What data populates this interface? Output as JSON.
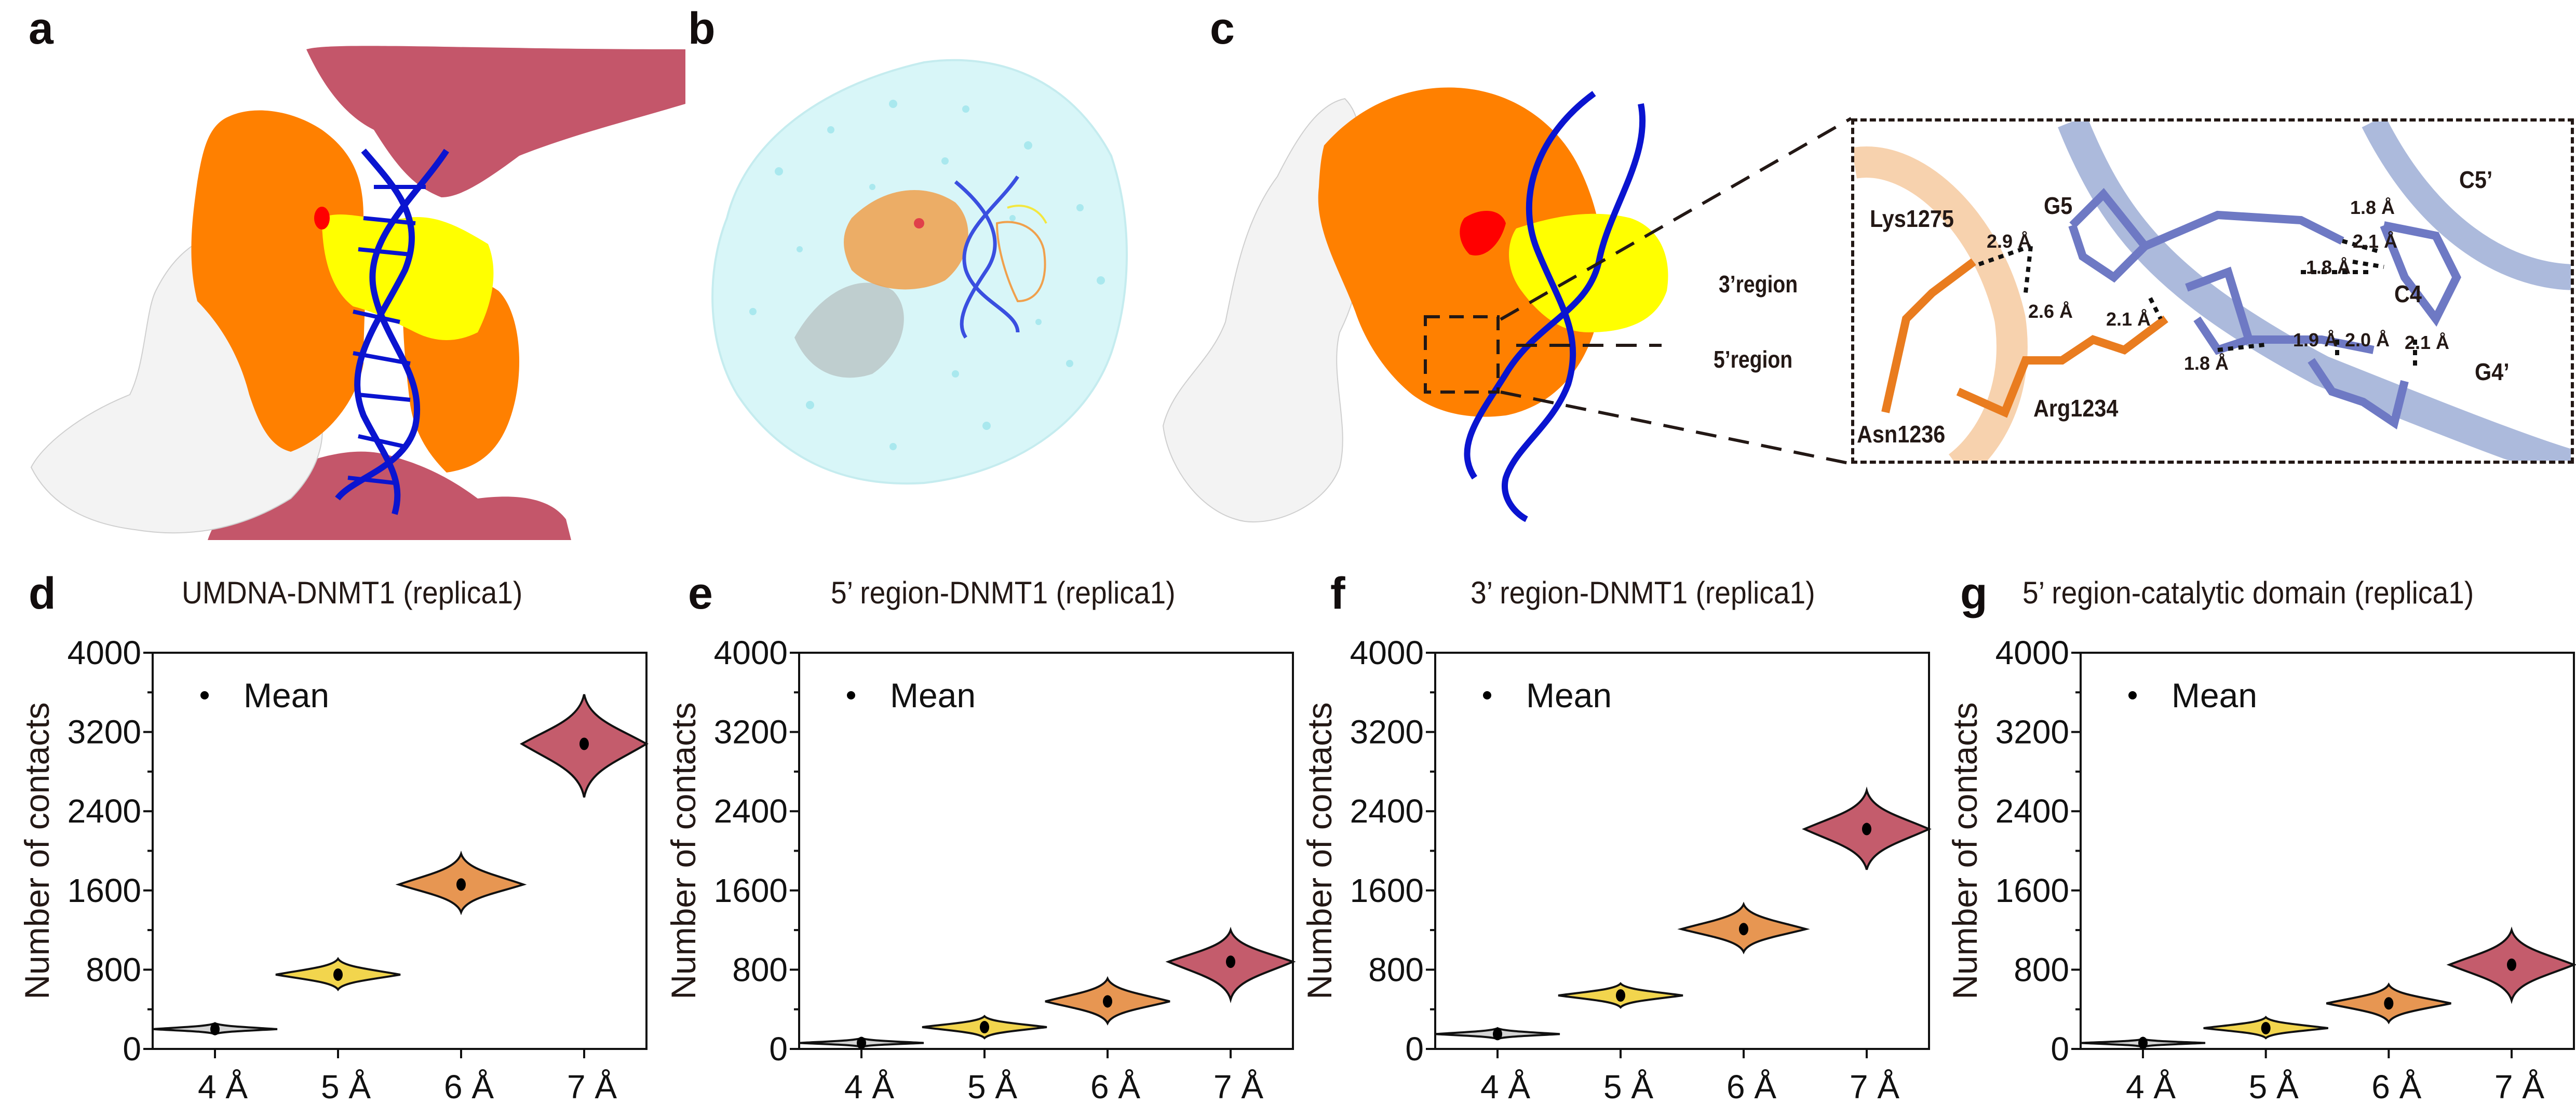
{
  "panels": {
    "a": {
      "letter": "a"
    },
    "b": {
      "letter": "b"
    },
    "c": {
      "letter": "c",
      "region_labels": [
        "3’region",
        "5’region"
      ],
      "inset": {
        "residue_labels": [
          "Lys1275",
          "Asn1236",
          "Arg1234"
        ],
        "nucleotide_labels": [
          "G5",
          "C5’",
          "C4",
          "G4’"
        ],
        "distances": [
          "2.9 Å",
          "2.6 Å",
          "2.1 Å",
          "1.8 Å",
          "2.1 Å",
          "1.8 Å",
          "1.9 Å",
          "2.0 Å",
          "2.1 Å",
          "1.8 Å"
        ]
      }
    },
    "d": {
      "letter": "d"
    },
    "e": {
      "letter": "e"
    },
    "f": {
      "letter": "f"
    },
    "g": {
      "letter": "g"
    }
  },
  "colors": {
    "dnmt1_orange": "#ff8000",
    "catalytic_yellow": "#ffff00",
    "dna_blue": "#0a14d0",
    "ligand_red": "#ff0000",
    "partner_rose": "#c4566a",
    "other_white": "#f2f2f2",
    "water_cyan": "#d8f6f8",
    "violin_4A": "#d4d4d4",
    "violin_5A": "#f2d54d",
    "violin_6A": "#e79652",
    "violin_7A": "#c45c6c"
  },
  "chart_common": {
    "ylabel": "Number of contacts",
    "legend": "Mean",
    "yticks": [
      "0",
      "800",
      "1600",
      "2400",
      "3200",
      "4000"
    ],
    "xticks": [
      "4 Å",
      "5 Å",
      "6 Å",
      "7 Å"
    ]
  },
  "chart_data": [
    {
      "panel": "d",
      "type": "violin",
      "title": "UMDNA-DNMT1  (replica1)",
      "xlabel": "",
      "ylabel": "Number of contacts",
      "categories": [
        "4 Å",
        "5 Å",
        "6 Å",
        "7 Å"
      ],
      "ylim": [
        0,
        4000
      ],
      "yticks": [
        0,
        800,
        1600,
        2400,
        3200,
        4000
      ],
      "legend": [
        "Mean"
      ],
      "legend_position": "upper left",
      "grid": false,
      "mean": [
        200,
        750,
        1660,
        3080
      ],
      "min": [
        150,
        600,
        1380,
        2540
      ],
      "max": [
        260,
        910,
        1970,
        3580
      ],
      "half_width": [
        0.4,
        0.4,
        0.4,
        0.4
      ]
    },
    {
      "panel": "e",
      "type": "violin",
      "title": "5’ region-DNMT1 (replica1)",
      "xlabel": "",
      "ylabel": "Number of contacts",
      "categories": [
        "4 Å",
        "5 Å",
        "6 Å",
        "7 Å"
      ],
      "ylim": [
        0,
        4000
      ],
      "yticks": [
        0,
        800,
        1600,
        2400,
        3200,
        4000
      ],
      "legend": [
        "Mean"
      ],
      "legend_position": "upper left",
      "grid": false,
      "mean": [
        60,
        220,
        480,
        880
      ],
      "min": [
        20,
        110,
        260,
        500
      ],
      "max": [
        110,
        330,
        710,
        1200
      ],
      "half_width": [
        0.4,
        0.4,
        0.4,
        0.4
      ]
    },
    {
      "panel": "f",
      "type": "violin",
      "title": "3’ region-DNMT1 (replica1)",
      "xlabel": "",
      "ylabel": "Number of contacts",
      "categories": [
        "4 Å",
        "5 Å",
        "6 Å",
        "7 Å"
      ],
      "ylim": [
        0,
        4000
      ],
      "yticks": [
        0,
        800,
        1600,
        2400,
        3200,
        4000
      ],
      "legend": [
        "Mean"
      ],
      "legend_position": "upper left",
      "grid": false,
      "mean": [
        150,
        540,
        1210,
        2220
      ],
      "min": [
        100,
        420,
        980,
        1810
      ],
      "max": [
        210,
        660,
        1460,
        2610
      ],
      "half_width": [
        0.4,
        0.4,
        0.4,
        0.4
      ]
    },
    {
      "panel": "g",
      "type": "violin",
      "title": "5’ region-catalytic domain (replica1)",
      "xlabel": "",
      "ylabel": "Number of contacts",
      "categories": [
        "4 Å",
        "5 Å",
        "6 Å",
        "7 Å"
      ],
      "ylim": [
        0,
        4000
      ],
      "yticks": [
        0,
        800,
        1600,
        2400,
        3200,
        4000
      ],
      "legend": [
        "Mean"
      ],
      "legend_position": "upper left",
      "grid": false,
      "mean": [
        60,
        210,
        460,
        850
      ],
      "min": [
        20,
        110,
        270,
        490
      ],
      "max": [
        100,
        320,
        650,
        1200
      ],
      "half_width": [
        0.4,
        0.4,
        0.4,
        0.4
      ]
    }
  ]
}
